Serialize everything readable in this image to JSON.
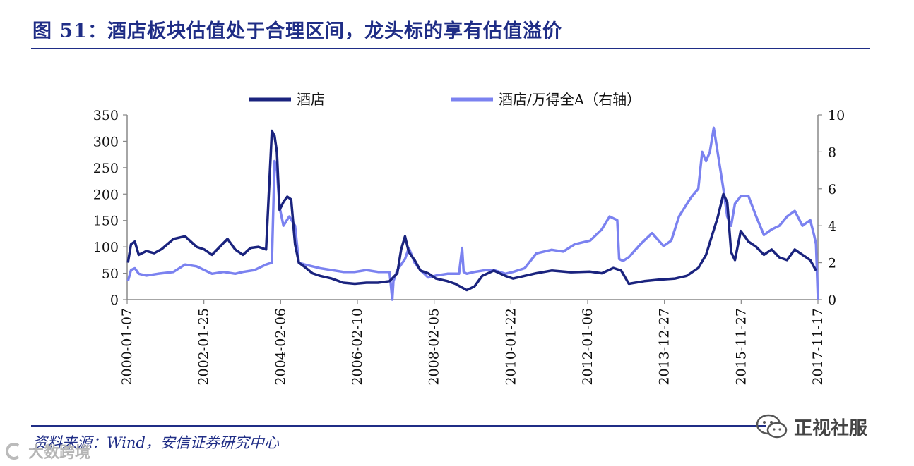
{
  "header": {
    "title": "图 51：酒店板块估值处于合理区间，龙头标的享有估值溢价"
  },
  "footer": {
    "source": "资料来源：Wind，安信证券研究中心"
  },
  "watermarks": {
    "right": "正视社服",
    "left": "大数跨境",
    "right_icon": "wechat-icon",
    "left_icon": "logo-icon"
  },
  "colors": {
    "series1": "#1a237e",
    "series2": "#7b82f0",
    "rule": "#1f2d86"
  },
  "chart_data": {
    "type": "line",
    "legend_placement": "top",
    "grid": false,
    "x_tick_labels": [
      "2000-01-07",
      "2002-01-25",
      "2004-02-06",
      "2006-02-10",
      "2008-02-05",
      "2010-01-22",
      "2012-01-06",
      "2013-12-27",
      "2015-11-27",
      "2017-11-17"
    ],
    "x_range": [
      2000.0,
      2017.9
    ],
    "y_left": {
      "range": [
        0,
        350
      ],
      "ticks": [
        "0",
        "50",
        "100",
        "150",
        "200",
        "250",
        "300",
        "350"
      ]
    },
    "y_right": {
      "range": [
        0,
        10
      ],
      "ticks": [
        "0",
        "2",
        "4",
        "6",
        "8",
        "10"
      ]
    },
    "series": [
      {
        "name": "酒店",
        "axis": "left",
        "x": [
          2000.02,
          2000.1,
          2000.2,
          2000.3,
          2000.5,
          2000.7,
          2000.9,
          2001.2,
          2001.5,
          2001.8,
          2002.0,
          2002.2,
          2002.4,
          2002.6,
          2002.8,
          2003.0,
          2003.2,
          2003.4,
          2003.6,
          2003.75,
          2003.82,
          2003.88,
          2003.95,
          2004.05,
          2004.15,
          2004.25,
          2004.35,
          2004.45,
          2004.6,
          2004.8,
          2005.0,
          2005.3,
          2005.6,
          2005.9,
          2006.2,
          2006.5,
          2006.8,
          2007.0,
          2007.1,
          2007.2,
          2007.3,
          2007.45,
          2007.6,
          2007.8,
          2008.0,
          2008.3,
          2008.5,
          2008.8,
          2009.0,
          2009.2,
          2009.5,
          2009.8,
          2010.0,
          2010.3,
          2010.6,
          2011.0,
          2011.5,
          2012.0,
          2012.3,
          2012.6,
          2012.8,
          2013.0,
          2013.4,
          2013.8,
          2014.2,
          2014.5,
          2014.8,
          2015.0,
          2015.15,
          2015.3,
          2015.45,
          2015.55,
          2015.65,
          2015.75,
          2015.9,
          2016.1,
          2016.3,
          2016.5,
          2016.7,
          2016.9,
          2017.1,
          2017.3,
          2017.5,
          2017.7,
          2017.85
        ],
        "y": [
          70,
          105,
          110,
          85,
          92,
          88,
          96,
          115,
          120,
          100,
          95,
          85,
          100,
          115,
          95,
          85,
          98,
          100,
          95,
          320,
          310,
          280,
          170,
          185,
          195,
          190,
          105,
          70,
          62,
          50,
          45,
          40,
          32,
          30,
          32,
          32,
          35,
          50,
          95,
          120,
          90,
          75,
          55,
          50,
          40,
          35,
          30,
          18,
          25,
          45,
          55,
          45,
          40,
          45,
          50,
          55,
          52,
          53,
          50,
          60,
          55,
          30,
          35,
          38,
          40,
          45,
          60,
          85,
          120,
          155,
          200,
          185,
          90,
          75,
          130,
          110,
          100,
          85,
          95,
          80,
          75,
          95,
          85,
          75,
          55
        ]
      },
      {
        "name": "酒店/万得全A（右轴）",
        "axis": "right",
        "x": [
          2000.02,
          2000.1,
          2000.2,
          2000.3,
          2000.5,
          2000.8,
          2001.2,
          2001.5,
          2001.8,
          2002.0,
          2002.2,
          2002.5,
          2002.8,
          2003.0,
          2003.3,
          2003.6,
          2003.75,
          2003.82,
          2003.88,
          2003.95,
          2004.05,
          2004.2,
          2004.35,
          2004.45,
          2004.6,
          2004.8,
          2005.0,
          2005.3,
          2005.6,
          2005.9,
          2006.2,
          2006.5,
          2006.8,
          2006.87,
          2006.9,
          2007.0,
          2007.2,
          2007.3,
          2007.45,
          2007.6,
          2007.8,
          2008.0,
          2008.3,
          2008.6,
          2008.68,
          2008.72,
          2008.8,
          2009.0,
          2009.3,
          2009.5,
          2009.8,
          2010.0,
          2010.3,
          2010.6,
          2011.0,
          2011.3,
          2011.6,
          2012.0,
          2012.3,
          2012.5,
          2012.7,
          2012.75,
          2012.85,
          2013.0,
          2013.3,
          2013.6,
          2013.9,
          2014.1,
          2014.3,
          2014.6,
          2014.8,
          2014.9,
          2015.0,
          2015.1,
          2015.2,
          2015.3,
          2015.45,
          2015.55,
          2015.65,
          2015.75,
          2015.9,
          2016.1,
          2016.3,
          2016.5,
          2016.7,
          2016.9,
          2017.1,
          2017.3,
          2017.5,
          2017.7,
          2017.8,
          2017.85,
          2017.9
        ],
        "y": [
          1.0,
          1.6,
          1.7,
          1.4,
          1.3,
          1.4,
          1.5,
          1.9,
          1.8,
          1.6,
          1.4,
          1.5,
          1.4,
          1.5,
          1.6,
          1.9,
          2.0,
          7.5,
          7.0,
          5.0,
          4.0,
          4.5,
          4.0,
          2.0,
          1.9,
          1.8,
          1.7,
          1.6,
          1.5,
          1.5,
          1.6,
          1.5,
          1.5,
          0.0,
          1.0,
          1.6,
          2.2,
          2.8,
          2.0,
          1.6,
          1.2,
          1.3,
          1.4,
          1.4,
          2.8,
          1.5,
          1.4,
          1.5,
          1.6,
          1.6,
          1.4,
          1.5,
          1.7,
          2.5,
          2.7,
          2.6,
          3.0,
          3.2,
          3.8,
          4.5,
          4.3,
          2.2,
          2.1,
          2.3,
          3.0,
          3.6,
          2.9,
          3.2,
          4.5,
          5.5,
          6.0,
          8.0,
          7.5,
          8.0,
          9.3,
          8.0,
          6.0,
          4.5,
          4.0,
          5.2,
          5.6,
          5.6,
          4.5,
          3.5,
          3.8,
          4.0,
          4.5,
          4.8,
          4.0,
          4.3,
          3.5,
          3.0,
          0.0
        ]
      }
    ]
  }
}
